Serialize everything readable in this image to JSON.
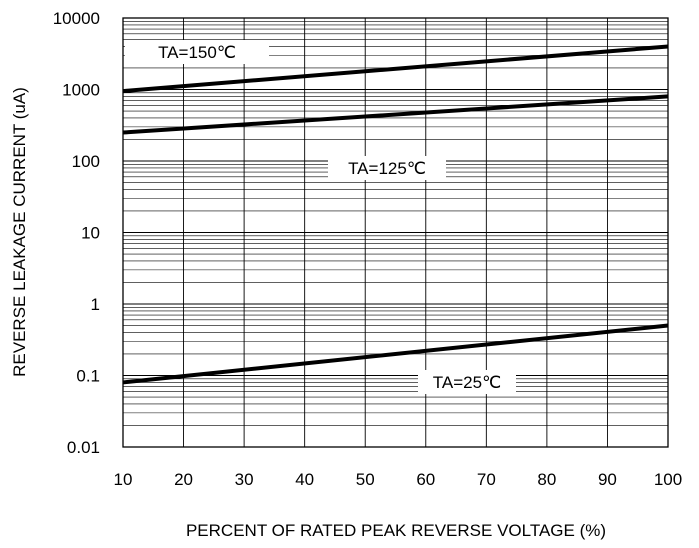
{
  "chart_data": {
    "type": "line",
    "title": "",
    "xlabel": "PERCENT OF RATED PEAK REVERSE VOLTAGE (%)",
    "ylabel": "REVERSE LEAKAGE CURRENT (uA)",
    "xlim": [
      10,
      100
    ],
    "ylim": [
      0.01,
      10000
    ],
    "y_scale": "log",
    "grid": true,
    "x_ticks": [
      "10",
      "20",
      "30",
      "40",
      "50",
      "60",
      "70",
      "80",
      "90",
      "100"
    ],
    "y_ticks": [
      "0.01",
      "0.1",
      "1",
      "10",
      "100",
      "1000",
      "10000"
    ],
    "line_color": "#000000",
    "series": [
      {
        "label": "TA=150℃",
        "x": [
          10,
          100
        ],
        "y": [
          950,
          4000
        ]
      },
      {
        "label": "TA=125℃",
        "x": [
          10,
          100
        ],
        "y": [
          250,
          800
        ]
      },
      {
        "label": "TA=25℃",
        "x": [
          10,
          100
        ],
        "y": [
          0.08,
          0.5
        ]
      }
    ]
  }
}
